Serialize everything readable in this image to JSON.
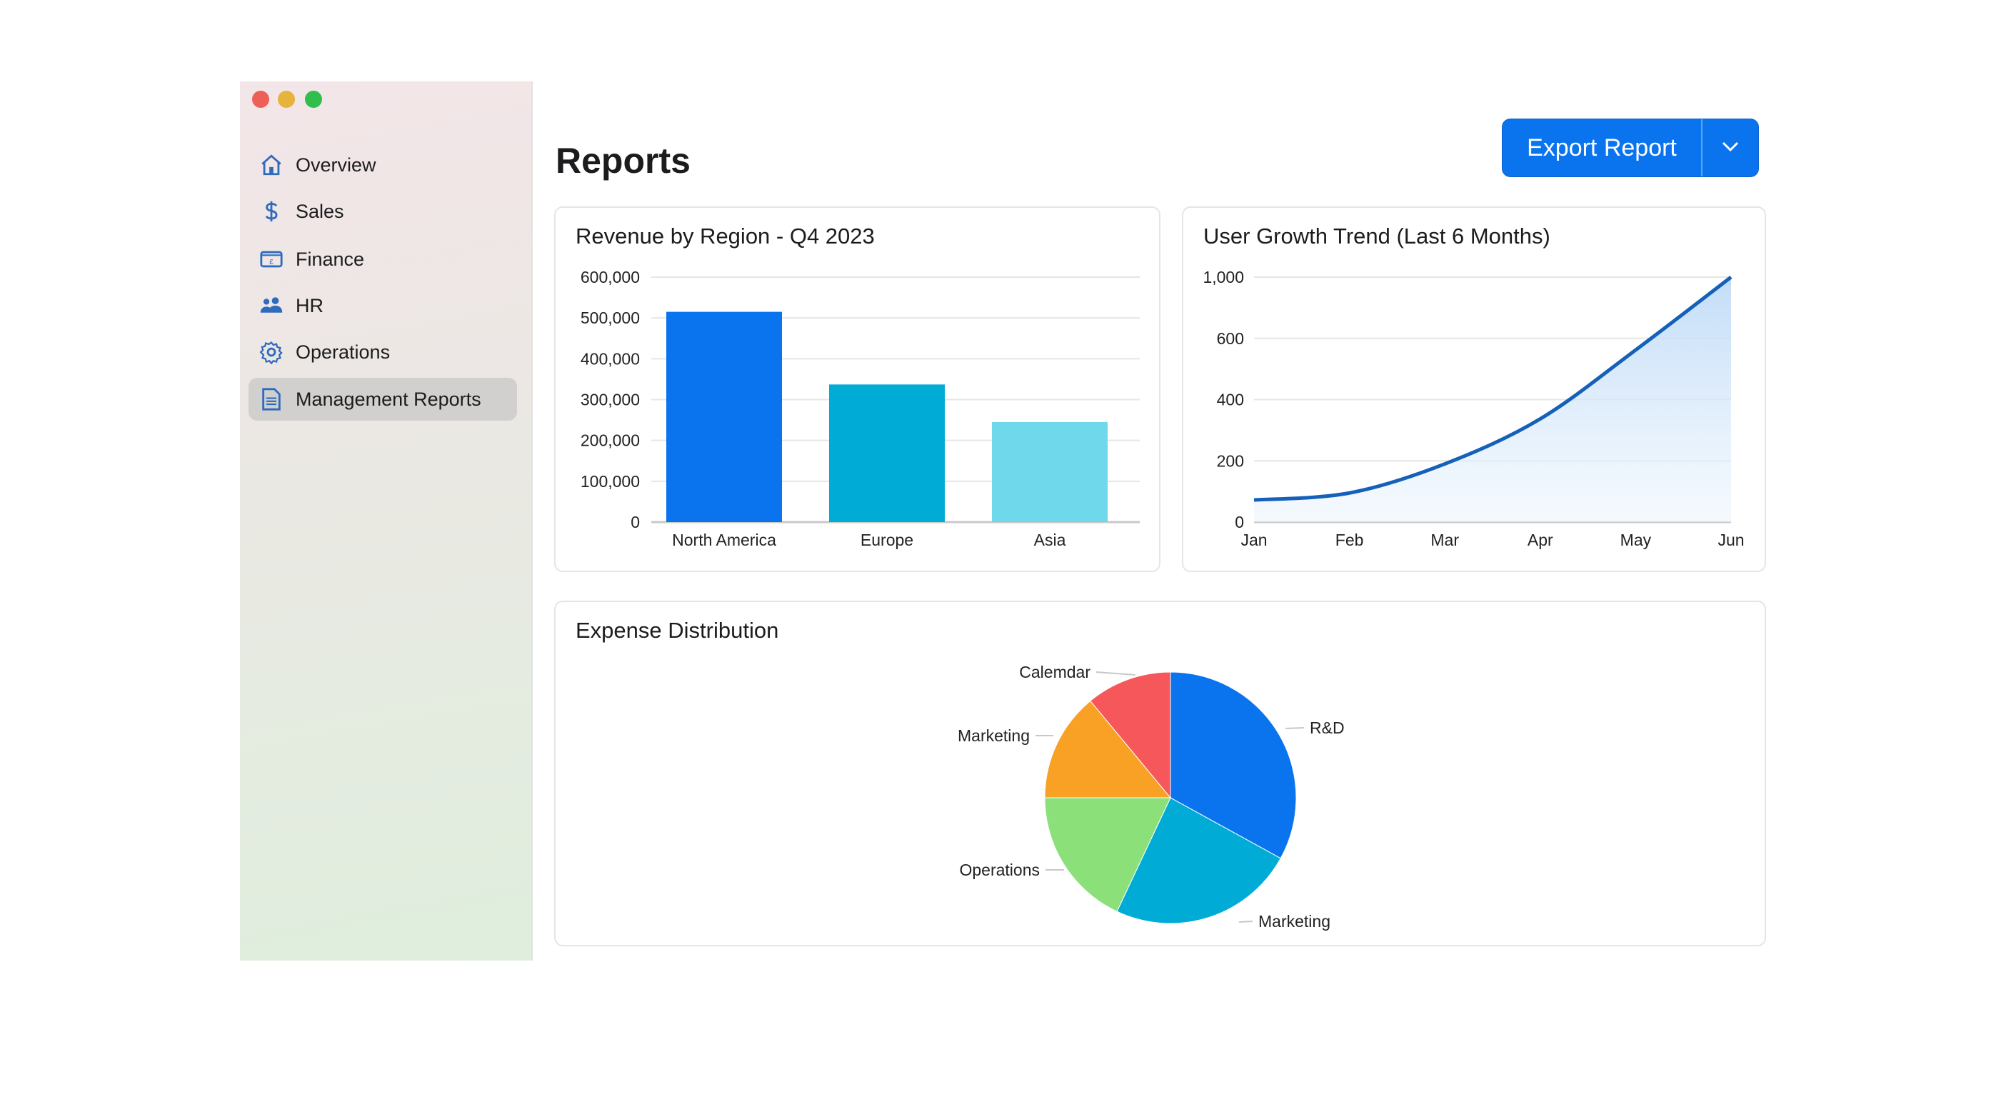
{
  "window": {
    "controls": [
      "close",
      "minimize",
      "zoom"
    ],
    "colors": {
      "close": "#ee5f57",
      "minimize": "#e6b33c",
      "zoom": "#2fbf4a"
    }
  },
  "sidebar": {
    "items": [
      {
        "label": "Overview",
        "icon": "home-icon"
      },
      {
        "label": "Sales",
        "icon": "dollar-icon"
      },
      {
        "label": "Finance",
        "icon": "banknote-icon"
      },
      {
        "label": "HR",
        "icon": "people-icon"
      },
      {
        "label": "Operations",
        "icon": "gear-icon"
      },
      {
        "label": "Management Reports",
        "icon": "document-icon",
        "selected": true
      }
    ]
  },
  "header": {
    "title": "Reports",
    "export_label": "Export Report",
    "accent": "#0a74ee"
  },
  "chart_data": [
    {
      "type": "bar",
      "title": "Revenue by Region - Q4 2023",
      "categories": [
        "North America",
        "Europe",
        "Asia"
      ],
      "values": [
        515000,
        337000,
        245000
      ],
      "colors": [
        "#0a74ee",
        "#00acd6",
        "#6fd8ea"
      ],
      "yticks": [
        "0",
        "100,000",
        "200,000",
        "300,000",
        "400,000",
        "500,000",
        "600,000"
      ],
      "ylim": [
        0,
        600000
      ],
      "grid": true
    },
    {
      "type": "area",
      "title": "User Growth Trend (Last 6 Months)",
      "x": [
        "Jan",
        "Feb",
        "Mar",
        "Apr",
        "May",
        "Jun"
      ],
      "values": [
        72,
        95,
        190,
        337,
        562,
        1000
      ],
      "yticks": [
        "0",
        "200",
        "400",
        "600",
        "1,000"
      ],
      "ylim": [
        0,
        1000
      ],
      "grid": true,
      "color": "#1560b8"
    },
    {
      "type": "pie",
      "title": "Expense Distribution",
      "labels": [
        "R&D",
        "Marketing",
        "Operations",
        "Marketing",
        "Calemdar"
      ],
      "values": [
        33,
        24,
        18,
        14,
        11
      ],
      "colors": [
        "#0a74ee",
        "#00acd6",
        "#8be07a",
        "#f9a125",
        "#f6575a"
      ]
    }
  ]
}
